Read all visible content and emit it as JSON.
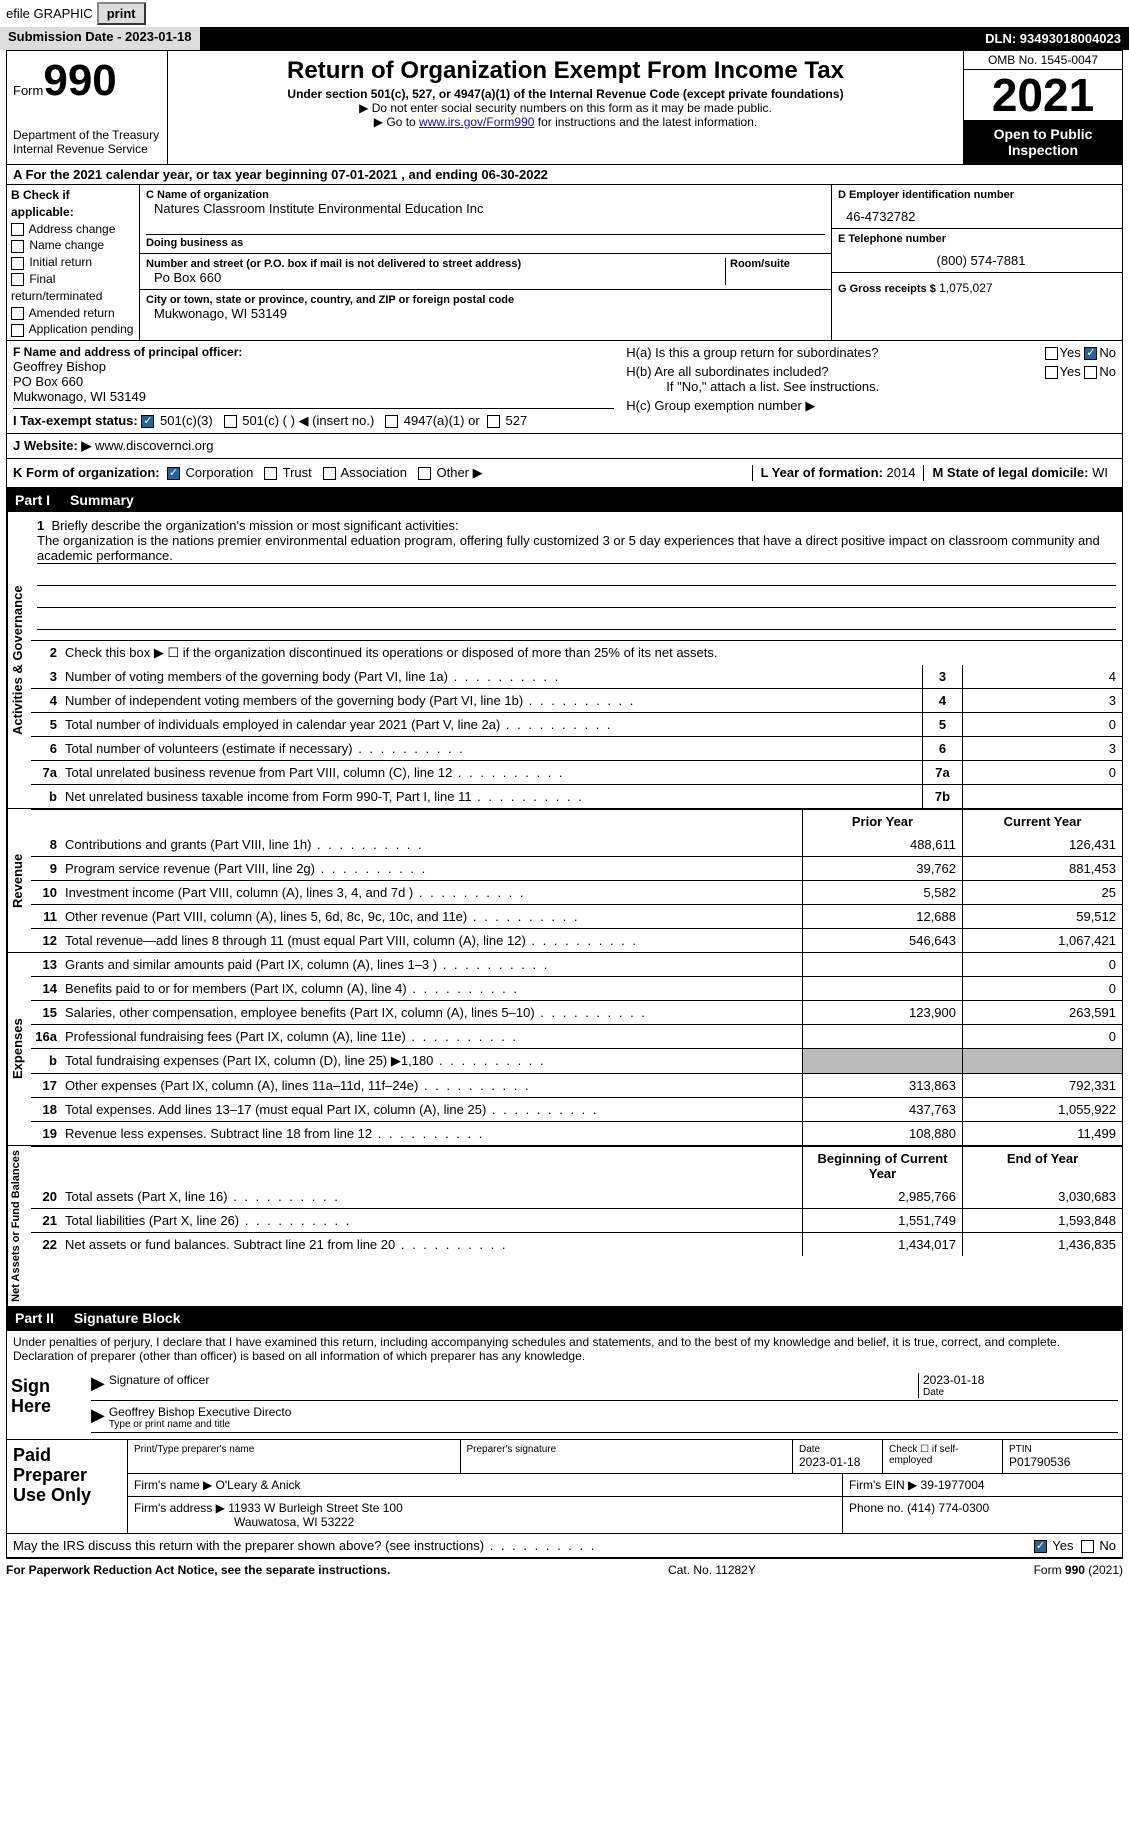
{
  "topbar": {
    "efile_label": "efile GRAPHIC",
    "print_btn": "print",
    "submission_label": "Submission Date - 2023-01-18",
    "dln_label": "DLN: 93493018004023"
  },
  "header": {
    "form_prefix": "Form",
    "form_number": "990",
    "dept": "Department of the Treasury\nInternal Revenue Service",
    "title": "Return of Organization Exempt From Income Tax",
    "subtitle": "Under section 501(c), 527, or 4947(a)(1) of the Internal Revenue Code (except private foundations)",
    "note1": "▶ Do not enter social security numbers on this form as it may be made public.",
    "note2_prefix": "▶ Go to ",
    "note2_link": "www.irs.gov/Form990",
    "note2_suffix": " for instructions and the latest information.",
    "omb": "OMB No. 1545-0047",
    "year": "2021",
    "inspection": "Open to Public Inspection"
  },
  "line_a": "A For the 2021 calendar year, or tax year beginning 07-01-2021    , and ending 06-30-2022",
  "box_b": {
    "header": "B Check if applicable:",
    "items": [
      "Address change",
      "Name change",
      "Initial return",
      "Final return/terminated",
      "Amended return",
      "Application pending"
    ]
  },
  "box_c": {
    "label_name": "C Name of organization",
    "org_name": "Natures Classroom Institute Environmental Education Inc",
    "dba_label": "Doing business as",
    "addr_label": "Number and street (or P.O. box if mail is not delivered to street address)",
    "room_label": "Room/suite",
    "addr": "Po Box 660",
    "city_label": "City or town, state or province, country, and ZIP or foreign postal code",
    "city": "Mukwonago, WI  53149"
  },
  "box_d": {
    "label": "D Employer identification number",
    "value": "46-4732782"
  },
  "box_e": {
    "label": "E Telephone number",
    "value": "(800) 574-7881"
  },
  "box_g": {
    "label": "G Gross receipts $",
    "value": "1,075,027"
  },
  "box_f": {
    "label": "F  Name and address of principal officer:",
    "name": "Geoffrey Bishop",
    "addr": "PO Box 660",
    "city": "Mukwonago, WI  53149"
  },
  "box_h": {
    "ha": "H(a)  Is this a group return for subordinates?",
    "hb": "H(b)  Are all subordinates included?",
    "hb_note": "If \"No,\" attach a list. See instructions.",
    "hc": "H(c)  Group exemption number ▶",
    "yes": "Yes",
    "no": "No"
  },
  "line_i": {
    "label": "I   Tax-exempt status:",
    "opts": [
      "501(c)(3)",
      "501(c) (  ) ◀ (insert no.)",
      "4947(a)(1) or",
      "527"
    ]
  },
  "line_j": {
    "label": "J   Website: ▶",
    "value": "www.discovernci.org"
  },
  "line_k": {
    "label": "K Form of organization:",
    "opts": [
      "Corporation",
      "Trust",
      "Association",
      "Other ▶"
    ],
    "l_label": "L Year of formation:",
    "l_value": "2014",
    "m_label": "M State of legal domicile:",
    "m_value": "WI"
  },
  "parts": {
    "p1": "Part I",
    "p1_title": "Summary",
    "p2": "Part II",
    "p2_title": "Signature Block"
  },
  "side_labels": {
    "activities": "Activities & Governance",
    "revenue": "Revenue",
    "expenses": "Expenses",
    "net": "Net Assets or Fund Balances"
  },
  "summary": {
    "line1_label": "Briefly describe the organization's mission or most significant activities:",
    "line1_text": "The organization is the nations premier environmental eduation program, offering fully customized 3 or 5 day experiences that have a direct positive impact on classroom community and academic performance.",
    "line2": "Check this box ▶ ☐  if the organization discontinued its operations or disposed of more than 25% of its net assets.",
    "rows": [
      {
        "n": "3",
        "desc": "Number of voting members of the governing body (Part VI, line 1a)",
        "box": "3",
        "val": "4"
      },
      {
        "n": "4",
        "desc": "Number of independent voting members of the governing body (Part VI, line 1b)",
        "box": "4",
        "val": "3"
      },
      {
        "n": "5",
        "desc": "Total number of individuals employed in calendar year 2021 (Part V, line 2a)",
        "box": "5",
        "val": "0"
      },
      {
        "n": "6",
        "desc": "Total number of volunteers (estimate if necessary)",
        "box": "6",
        "val": "3"
      },
      {
        "n": "7a",
        "desc": "Total unrelated business revenue from Part VIII, column (C), line 12",
        "box": "7a",
        "val": "0"
      },
      {
        "n": "b",
        "desc": "Net unrelated business taxable income from Form 990-T, Part I, line 11",
        "box": "7b",
        "val": ""
      }
    ],
    "col_prior": "Prior Year",
    "col_current": "Current Year",
    "revenue_rows": [
      {
        "n": "8",
        "desc": "Contributions and grants (Part VIII, line 1h)",
        "prior": "488,611",
        "curr": "126,431"
      },
      {
        "n": "9",
        "desc": "Program service revenue (Part VIII, line 2g)",
        "prior": "39,762",
        "curr": "881,453"
      },
      {
        "n": "10",
        "desc": "Investment income (Part VIII, column (A), lines 3, 4, and 7d )",
        "prior": "5,582",
        "curr": "25"
      },
      {
        "n": "11",
        "desc": "Other revenue (Part VIII, column (A), lines 5, 6d, 8c, 9c, 10c, and 11e)",
        "prior": "12,688",
        "curr": "59,512"
      },
      {
        "n": "12",
        "desc": "Total revenue—add lines 8 through 11 (must equal Part VIII, column (A), line 12)",
        "prior": "546,643",
        "curr": "1,067,421"
      }
    ],
    "expense_rows": [
      {
        "n": "13",
        "desc": "Grants and similar amounts paid (Part IX, column (A), lines 1–3 )",
        "prior": "",
        "curr": "0"
      },
      {
        "n": "14",
        "desc": "Benefits paid to or for members (Part IX, column (A), line 4)",
        "prior": "",
        "curr": "0"
      },
      {
        "n": "15",
        "desc": "Salaries, other compensation, employee benefits (Part IX, column (A), lines 5–10)",
        "prior": "123,900",
        "curr": "263,591"
      },
      {
        "n": "16a",
        "desc": "Professional fundraising fees (Part IX, column (A), line 11e)",
        "prior": "",
        "curr": "0"
      },
      {
        "n": "b",
        "desc": "Total fundraising expenses (Part IX, column (D), line 25) ▶1,180",
        "prior": "GRAY",
        "curr": "GRAY"
      },
      {
        "n": "17",
        "desc": "Other expenses (Part IX, column (A), lines 11a–11d, 11f–24e)",
        "prior": "313,863",
        "curr": "792,331"
      },
      {
        "n": "18",
        "desc": "Total expenses. Add lines 13–17 (must equal Part IX, column (A), line 25)",
        "prior": "437,763",
        "curr": "1,055,922"
      },
      {
        "n": "19",
        "desc": "Revenue less expenses. Subtract line 18 from line 12",
        "prior": "108,880",
        "curr": "11,499"
      }
    ],
    "col_begin": "Beginning of Current Year",
    "col_end": "End of Year",
    "net_rows": [
      {
        "n": "20",
        "desc": "Total assets (Part X, line 16)",
        "prior": "2,985,766",
        "curr": "3,030,683"
      },
      {
        "n": "21",
        "desc": "Total liabilities (Part X, line 26)",
        "prior": "1,551,749",
        "curr": "1,593,848"
      },
      {
        "n": "22",
        "desc": "Net assets or fund balances. Subtract line 21 from line 20",
        "prior": "1,434,017",
        "curr": "1,436,835"
      }
    ]
  },
  "signature": {
    "declaration": "Under penalties of perjury, I declare that I have examined this return, including accompanying schedules and statements, and to the best of my knowledge and belief, it is true, correct, and complete. Declaration of preparer (other than officer) is based on all information of which preparer has any knowledge.",
    "sign_here": "Sign Here",
    "sig_officer_label": "Signature of officer",
    "sig_date": "2023-01-18",
    "date_label": "Date",
    "officer_name": "Geoffrey Bishop Executive Directo",
    "type_label": "Type or print name and title",
    "paid": "Paid Preparer Use Only",
    "print_type": "Print/Type preparer's name",
    "prep_sig": "Preparer's signature",
    "prep_date_label": "Date",
    "prep_date": "2023-01-18",
    "check_self": "Check ☐ if self-employed",
    "ptin_label": "PTIN",
    "ptin": "P01790536",
    "firm_name_label": "Firm's name     ▶",
    "firm_name": "O'Leary & Anick",
    "firm_ein_label": "Firm's EIN ▶",
    "firm_ein": "39-1977004",
    "firm_addr_label": "Firm's address ▶",
    "firm_addr": "11933 W Burleigh Street Ste 100",
    "firm_city": "Wauwatosa, WI  53222",
    "phone_label": "Phone no.",
    "phone": "(414) 774-0300",
    "discuss": "May the IRS discuss this return with the preparer shown above? (see instructions)",
    "yes": "Yes",
    "no": "No"
  },
  "footer": {
    "paperwork": "For Paperwork Reduction Act Notice, see the separate instructions.",
    "cat": "Cat. No. 11282Y",
    "form": "Form 990 (2021)"
  },
  "colors": {
    "black": "#000000",
    "link": "#1a0dab",
    "check_fill": "#2a6496",
    "gray_cell": "#bbbbbb"
  }
}
